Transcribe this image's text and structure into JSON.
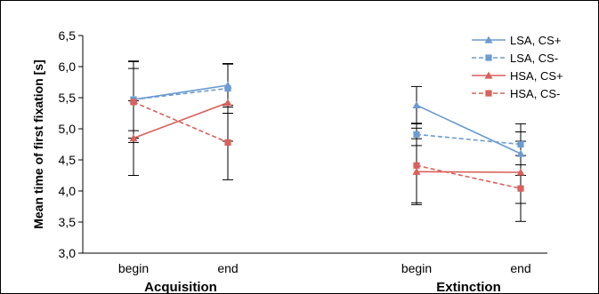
{
  "chart_data": {
    "type": "line",
    "ylabel": "Mean time of first fixation [s]",
    "ylim": [
      3.0,
      6.5
    ],
    "yticks": [
      "3,0",
      "3,5",
      "4,0",
      "4,5",
      "5,0",
      "5,5",
      "6,0",
      "6,5"
    ],
    "grid": false,
    "legend_position": "top-right",
    "groups": [
      {
        "name": "Acquisition",
        "categories": [
          "begin",
          "end"
        ]
      },
      {
        "name": "Extinction",
        "categories": [
          "begin",
          "end"
        ]
      }
    ],
    "series": [
      {
        "name": "LSA, CS+",
        "color": "#6b9bd1",
        "line_style": "solid",
        "marker": "triangle",
        "values": [
          [
            5.47,
            5.7
          ],
          [
            5.38,
            4.6
          ]
        ],
        "errors": [
          [
            0.62,
            0.35
          ],
          [
            0.3,
            0.35
          ]
        ]
      },
      {
        "name": "LSA, CS-",
        "color": "#6b9bd1",
        "line_style": "dashed",
        "marker": "square",
        "values": [
          [
            5.47,
            5.65
          ],
          [
            4.91,
            4.75
          ]
        ],
        "errors": [
          [
            0.5,
            0.4
          ],
          [
            0.18,
            0.33
          ]
        ]
      },
      {
        "name": "HSA, CS+",
        "color": "#d9605c",
        "line_style": "solid",
        "marker": "triangle",
        "values": [
          [
            4.85,
            5.42
          ],
          [
            4.31,
            4.3
          ]
        ],
        "errors": [
          [
            0.6,
            0.62
          ],
          [
            0.53,
            0.5
          ]
        ]
      },
      {
        "name": "HSA, CS-",
        "color": "#d9605c",
        "line_style": "dashed",
        "marker": "square",
        "values": [
          [
            5.43,
            4.78
          ],
          [
            4.41,
            4.04
          ]
        ],
        "errors": [
          [
            0.65,
            0.6
          ],
          [
            0.6,
            0.53
          ]
        ]
      }
    ]
  }
}
